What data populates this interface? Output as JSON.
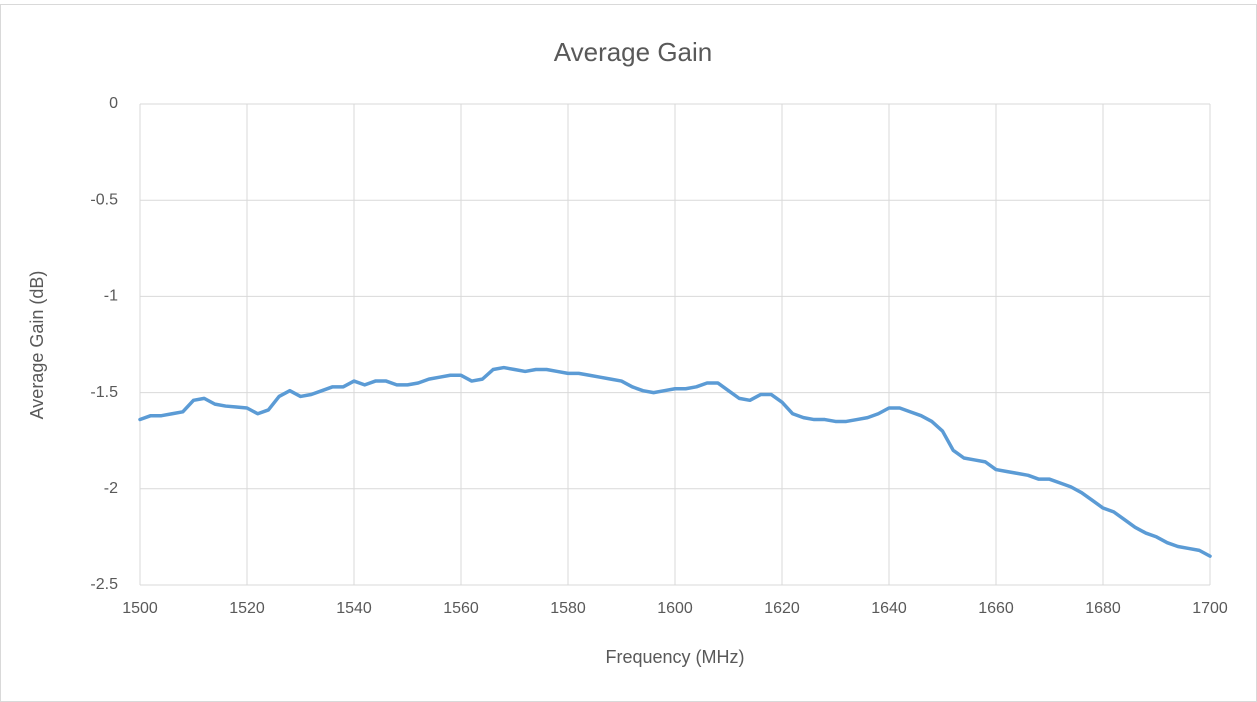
{
  "chart_data": {
    "type": "line",
    "title": "Average Gain",
    "x_label": "Frequency (MHz)",
    "y_label": "Average Gain (dB)",
    "xlim": [
      1500,
      1700
    ],
    "xticks": [
      1500,
      1520,
      1540,
      1560,
      1580,
      1600,
      1620,
      1640,
      1660,
      1680,
      1700
    ],
    "ylim": [
      -2.5,
      0
    ],
    "yticks": [
      -2.5,
      -2,
      -1.5,
      -1,
      -0.5,
      0
    ],
    "grid": true,
    "x": [
      1500,
      1502,
      1504,
      1506,
      1508,
      1510,
      1512,
      1514,
      1516,
      1518,
      1520,
      1522,
      1524,
      1526,
      1528,
      1530,
      1532,
      1534,
      1536,
      1538,
      1540,
      1542,
      1544,
      1546,
      1548,
      1550,
      1552,
      1554,
      1556,
      1558,
      1560,
      1562,
      1564,
      1566,
      1568,
      1570,
      1572,
      1574,
      1576,
      1578,
      1580,
      1582,
      1584,
      1586,
      1588,
      1590,
      1592,
      1594,
      1596,
      1598,
      1600,
      1602,
      1604,
      1606,
      1608,
      1610,
      1612,
      1614,
      1616,
      1618,
      1620,
      1622,
      1624,
      1626,
      1628,
      1630,
      1632,
      1634,
      1636,
      1638,
      1640,
      1642,
      1644,
      1646,
      1648,
      1650,
      1652,
      1654,
      1656,
      1658,
      1660,
      1662,
      1664,
      1666,
      1668,
      1670,
      1672,
      1674,
      1676,
      1678,
      1680,
      1682,
      1684,
      1686,
      1688,
      1690,
      1692,
      1694,
      1696,
      1698,
      1700
    ],
    "series": [
      {
        "name": "Average Gain",
        "color": "#5b9bd5",
        "values": [
          -1.64,
          -1.62,
          -1.62,
          -1.61,
          -1.6,
          -1.54,
          -1.53,
          -1.56,
          -1.57,
          -1.575,
          -1.58,
          -1.61,
          -1.59,
          -1.52,
          -1.49,
          -1.52,
          -1.51,
          -1.49,
          -1.47,
          -1.47,
          -1.44,
          -1.46,
          -1.44,
          -1.44,
          -1.46,
          -1.46,
          -1.45,
          -1.43,
          -1.42,
          -1.41,
          -1.41,
          -1.44,
          -1.43,
          -1.38,
          -1.37,
          -1.38,
          -1.39,
          -1.38,
          -1.38,
          -1.39,
          -1.4,
          -1.4,
          -1.41,
          -1.42,
          -1.43,
          -1.44,
          -1.47,
          -1.49,
          -1.5,
          -1.49,
          -1.48,
          -1.48,
          -1.47,
          -1.45,
          -1.45,
          -1.49,
          -1.53,
          -1.54,
          -1.51,
          -1.51,
          -1.55,
          -1.61,
          -1.63,
          -1.64,
          -1.64,
          -1.65,
          -1.65,
          -1.64,
          -1.63,
          -1.61,
          -1.58,
          -1.58,
          -1.6,
          -1.62,
          -1.65,
          -1.7,
          -1.8,
          -1.84,
          -1.85,
          -1.86,
          -1.9,
          -1.91,
          -1.92,
          -1.93,
          -1.95,
          -1.95,
          -1.97,
          -1.99,
          -2.02,
          -2.06,
          -2.1,
          -2.12,
          -2.16,
          -2.2,
          -2.23,
          -2.25,
          -2.28,
          -2.3,
          -2.31,
          -2.32,
          -2.35
        ]
      }
    ]
  }
}
